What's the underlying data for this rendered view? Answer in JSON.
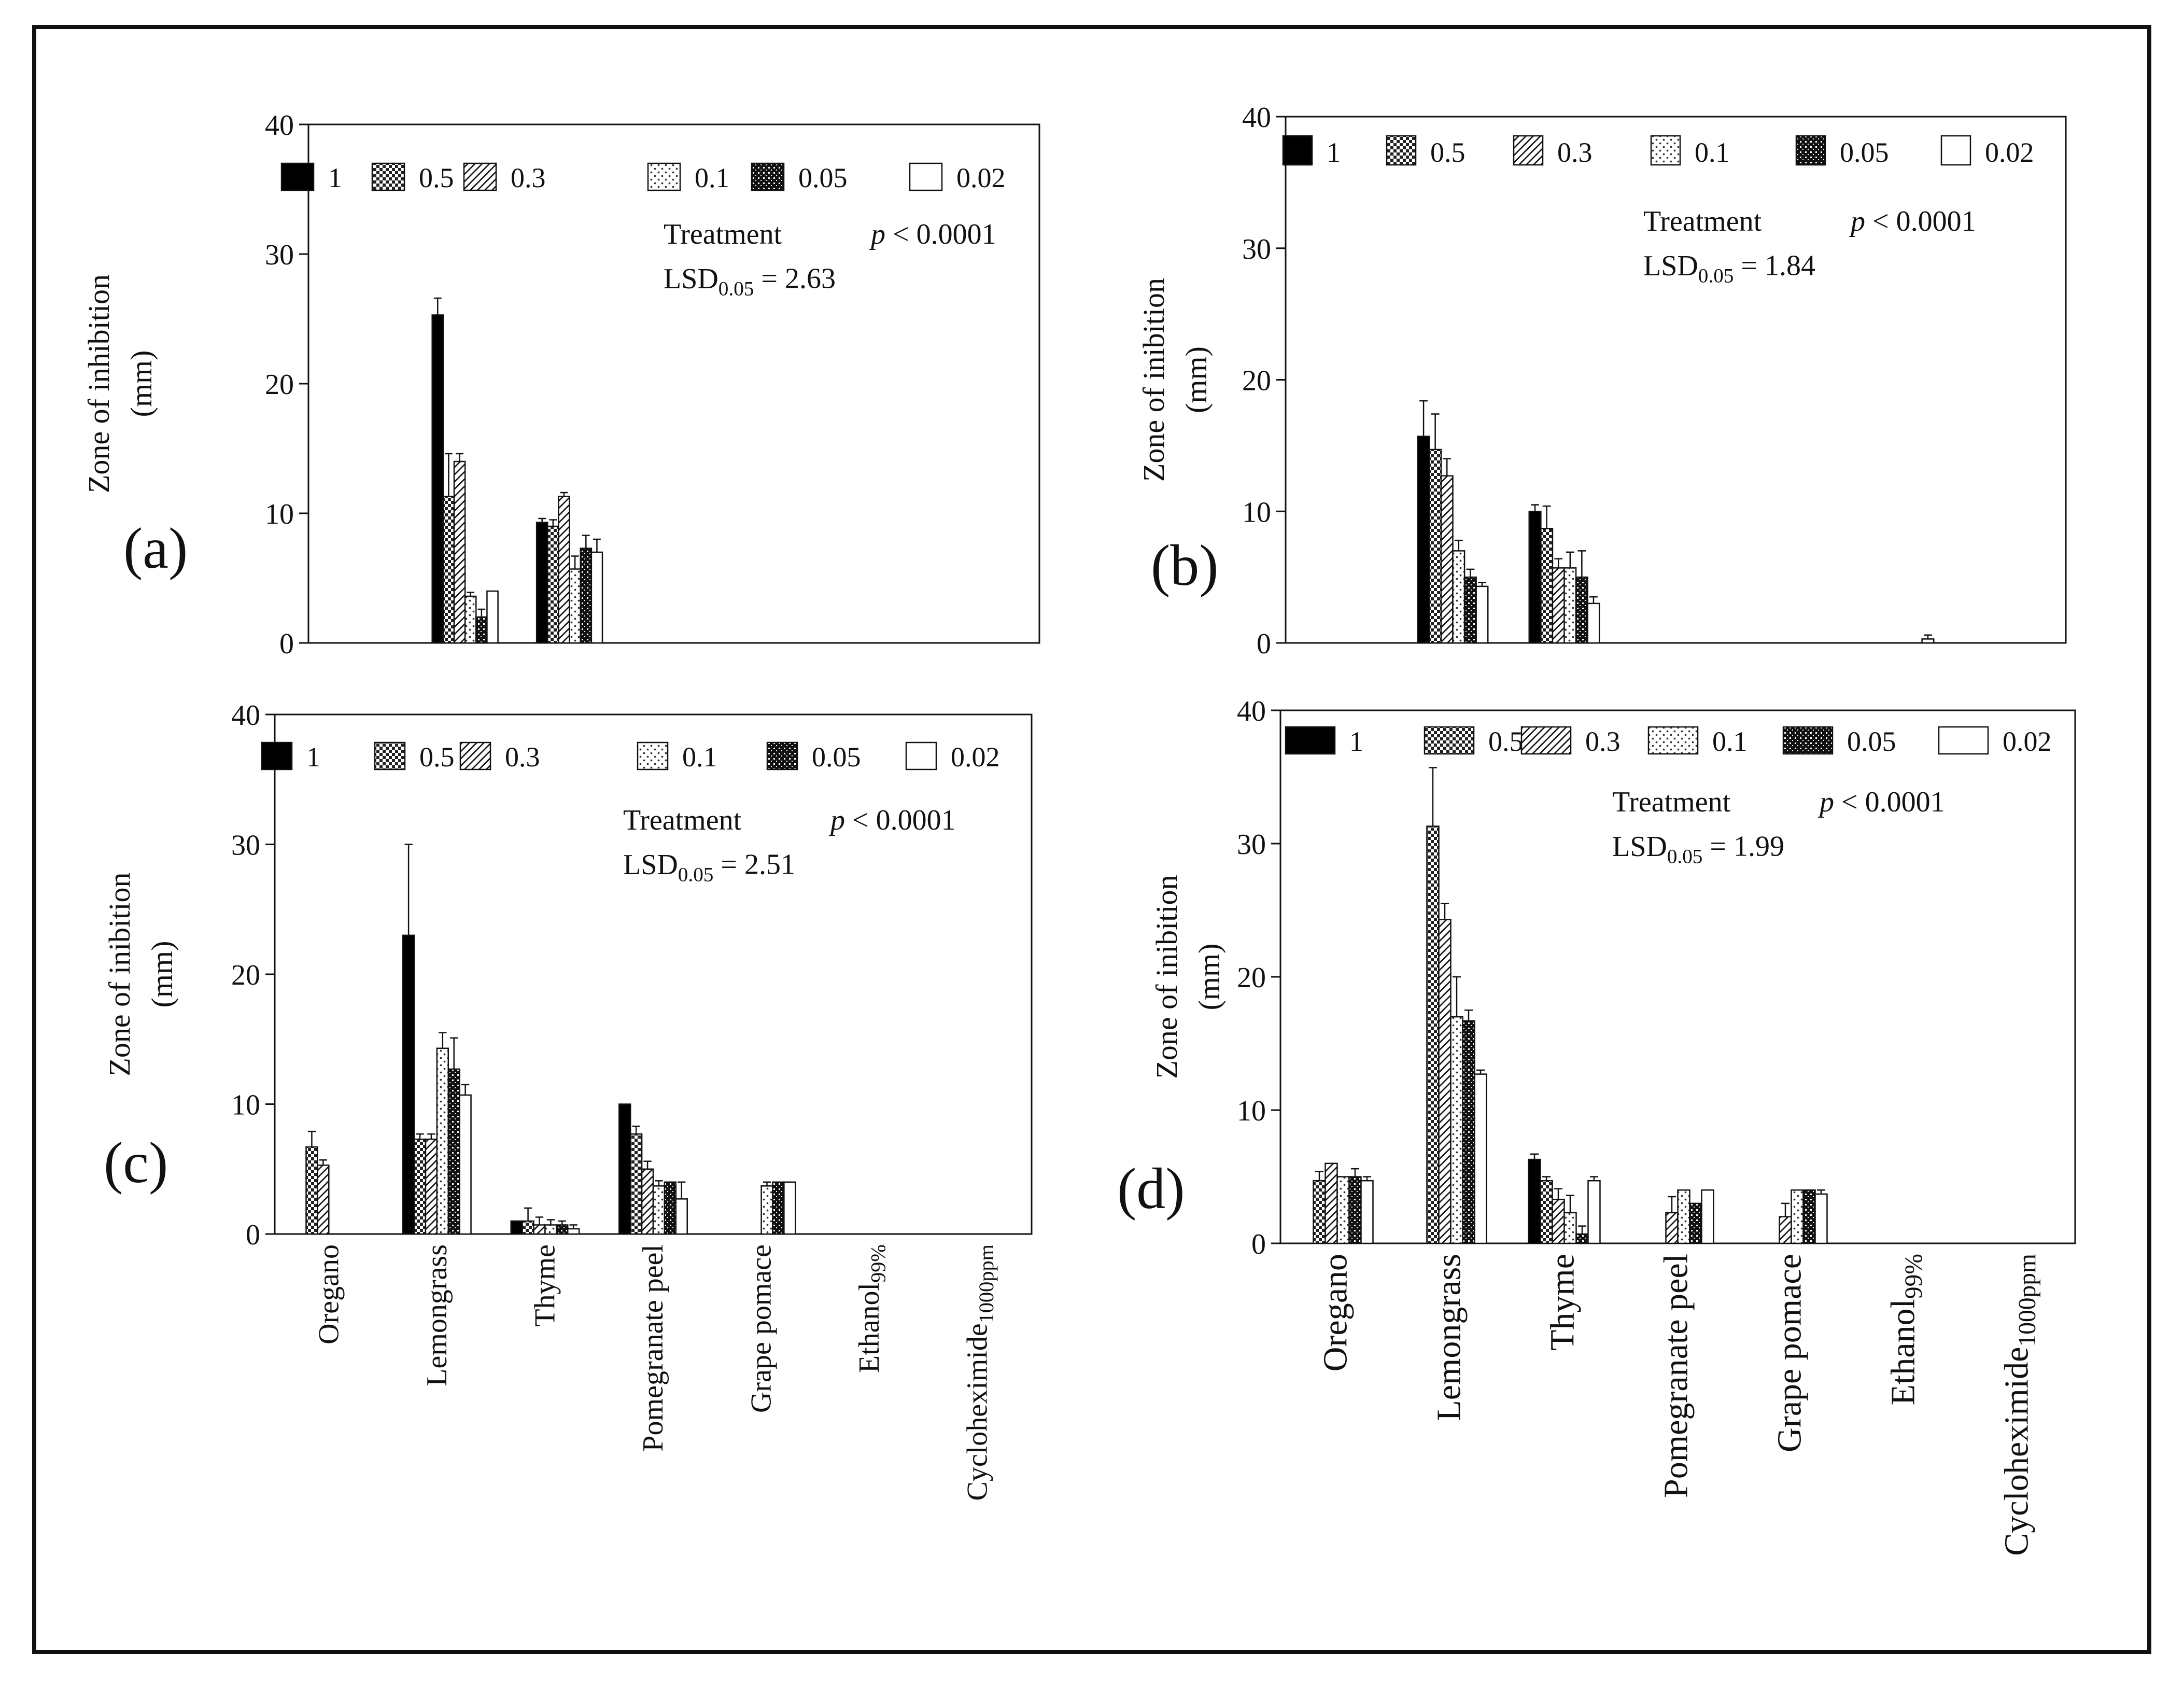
{
  "figure": {
    "panel_tags": [
      "(a)",
      "(b)",
      "(c)",
      "(d)"
    ]
  },
  "chart_data": [
    {
      "panel": "(a)",
      "type": "bar",
      "ylabel_lines": [
        "Zone of inhibition",
        "(mm)"
      ],
      "ylim": [
        0,
        40
      ],
      "yticks": [
        0,
        10,
        20,
        30,
        40
      ],
      "categories": [
        "Oregano",
        "Lemongrass",
        "Thyme",
        "Pomegranate peel",
        "Grape pomace",
        "Ethanol99%",
        "Cycloheximide1000ppm"
      ],
      "show_category_labels": false,
      "legend": [
        "1",
        "0.5",
        "0.3",
        "0.1",
        "0.05",
        "0.02"
      ],
      "annotation": {
        "treatment": "Treatment",
        "p": "p < 0.0001",
        "lsd_base": "LSD",
        "lsd_sub": "0.05",
        "lsd_val": "= 2.63"
      },
      "series": [
        {
          "name": "1",
          "values": [
            0,
            25.3,
            9.3,
            0,
            0,
            0,
            0
          ],
          "errors": [
            0,
            1.3,
            0.3,
            0,
            0,
            0,
            0
          ]
        },
        {
          "name": "0.5",
          "values": [
            0,
            11.3,
            9.0,
            0,
            0,
            0,
            0
          ],
          "errors": [
            0,
            3.3,
            0.5,
            0,
            0,
            0,
            0
          ]
        },
        {
          "name": "0.3",
          "values": [
            0,
            14.0,
            11.3,
            0,
            0,
            0,
            0
          ],
          "errors": [
            0,
            0.6,
            0.3,
            0,
            0,
            0,
            0
          ]
        },
        {
          "name": "0.1",
          "values": [
            0,
            3.6,
            5.7,
            0,
            0,
            0,
            0
          ],
          "errors": [
            0,
            0.3,
            1.0,
            0,
            0,
            0,
            0
          ]
        },
        {
          "name": "0.05",
          "values": [
            0,
            2.0,
            7.3,
            0,
            0,
            0,
            0
          ],
          "errors": [
            0,
            0.6,
            1.0,
            0,
            0,
            0,
            0
          ]
        },
        {
          "name": "0.02",
          "values": [
            0,
            4.0,
            7.0,
            0,
            0,
            0,
            0
          ],
          "errors": [
            0,
            0,
            1.0,
            0,
            0,
            0,
            0
          ]
        }
      ]
    },
    {
      "panel": "(b)",
      "type": "bar",
      "ylabel_lines": [
        "Zone of inibition",
        "(mm)"
      ],
      "ylim": [
        0,
        40
      ],
      "yticks": [
        0,
        10,
        20,
        30,
        40
      ],
      "categories": [
        "Oregano",
        "Lemongrass",
        "Thyme",
        "Pomegranate peel",
        "Grape pomace",
        "Ethanol99%",
        "Cycloheximide1000ppm"
      ],
      "show_category_labels": false,
      "legend": [
        "1",
        "0.5",
        "0.3",
        "0.1",
        "0.05",
        "0.02"
      ],
      "annotation": {
        "treatment": "Treatment",
        "p": "p < 0.0001",
        "lsd_base": "LSD",
        "lsd_sub": "0.05",
        "lsd_val": "= 1.84"
      },
      "series": [
        {
          "name": "1",
          "values": [
            0,
            15.7,
            10.0,
            0,
            0,
            0,
            0
          ],
          "errors": [
            0,
            2.7,
            0.5,
            0,
            0,
            0,
            0
          ]
        },
        {
          "name": "0.5",
          "values": [
            0,
            14.7,
            8.7,
            0,
            0,
            0,
            0
          ],
          "errors": [
            0,
            2.7,
            1.7,
            0,
            0,
            0,
            0
          ]
        },
        {
          "name": "0.3",
          "values": [
            0,
            12.7,
            5.7,
            0,
            0,
            0,
            0
          ],
          "errors": [
            0,
            1.3,
            0.7,
            0,
            0,
            0,
            0
          ]
        },
        {
          "name": "0.1",
          "values": [
            0,
            7.0,
            5.7,
            0,
            0,
            0,
            0
          ],
          "errors": [
            0,
            0.8,
            1.2,
            0,
            0,
            0,
            0
          ]
        },
        {
          "name": "0.05",
          "values": [
            0,
            5.0,
            5.0,
            0,
            0,
            0,
            0
          ],
          "errors": [
            0,
            0.6,
            2.0,
            0,
            0,
            0,
            0
          ]
        },
        {
          "name": "0.02",
          "values": [
            0,
            4.3,
            3.0,
            0,
            0,
            0.3,
            0
          ],
          "errors": [
            0,
            0.3,
            0.5,
            0,
            0,
            0.3,
            0
          ]
        }
      ]
    },
    {
      "panel": "(c)",
      "type": "bar",
      "ylabel_lines": [
        "Zone of inibition",
        "(mm)"
      ],
      "ylim": [
        0,
        40
      ],
      "yticks": [
        0,
        10,
        20,
        30,
        40
      ],
      "categories": [
        "Oregano",
        "Lemongrass",
        "Thyme",
        "Pomegranate peel",
        "Grape pomace",
        "Ethanol99%",
        "Cycloheximide1000ppm"
      ],
      "show_category_labels": true,
      "legend": [
        "1",
        "0.5",
        "0.3",
        "0.1",
        "0.05",
        "0.02"
      ],
      "annotation": {
        "treatment": "Treatment",
        "p": "p < 0.0001",
        "lsd_base": "LSD",
        "lsd_sub": "0.05",
        "lsd_val": "= 2.51"
      },
      "series": [
        {
          "name": "1",
          "values": [
            0,
            23.0,
            1.0,
            10.0,
            0,
            0,
            0
          ],
          "errors": [
            0,
            7.0,
            0,
            0,
            0,
            0,
            0
          ]
        },
        {
          "name": "0.5",
          "values": [
            6.7,
            7.3,
            1.0,
            7.7,
            0,
            0,
            0
          ],
          "errors": [
            1.2,
            0.4,
            1.0,
            0.6,
            0,
            0,
            0
          ]
        },
        {
          "name": "0.3",
          "values": [
            5.3,
            7.3,
            0.7,
            5.0,
            0,
            0,
            0
          ],
          "errors": [
            0.4,
            0.4,
            0.6,
            0.6,
            0,
            0,
            0
          ]
        },
        {
          "name": "0.1",
          "values": [
            0,
            14.3,
            0.7,
            3.7,
            3.7,
            0,
            0
          ],
          "errors": [
            0,
            1.2,
            0.4,
            0.4,
            0.3,
            0,
            0
          ]
        },
        {
          "name": "0.05",
          "values": [
            0,
            12.7,
            0.7,
            4.0,
            4.0,
            0,
            0
          ],
          "errors": [
            0,
            2.4,
            0.3,
            0,
            0,
            0,
            0
          ]
        },
        {
          "name": "0.02",
          "values": [
            0,
            10.7,
            0.4,
            2.7,
            4.0,
            0,
            0
          ],
          "errors": [
            0,
            0.8,
            0.3,
            1.3,
            0,
            0,
            0
          ]
        }
      ]
    },
    {
      "panel": "(d)",
      "type": "bar",
      "ylabel_lines": [
        "Zone of inibition",
        "(mm)"
      ],
      "ylim": [
        0,
        40
      ],
      "yticks": [
        0,
        10,
        20,
        30,
        40
      ],
      "categories": [
        "Oregano",
        "Lemongrass",
        "Thyme",
        "Pomegranate peel",
        "Grape pomace",
        "Ethanol99%",
        "Cycloheximide1000ppm"
      ],
      "show_category_labels": true,
      "legend": [
        "1",
        "0.5",
        "0.3",
        "0.1",
        "0.05",
        "0.02"
      ],
      "annotation": {
        "treatment": "Treatment",
        "p": "p < 0.0001",
        "lsd_base": "LSD",
        "lsd_sub": "0.05",
        "lsd_val": "= 1.99"
      },
      "series": [
        {
          "name": "1",
          "values": [
            0,
            0,
            6.3,
            0,
            0,
            0,
            0
          ],
          "errors": [
            0,
            0,
            0.4,
            0,
            0,
            0,
            0
          ]
        },
        {
          "name": "0.5",
          "values": [
            4.7,
            31.3,
            4.7,
            0,
            0,
            0,
            0
          ],
          "errors": [
            0.7,
            4.4,
            0.3,
            0,
            0,
            0,
            0
          ]
        },
        {
          "name": "0.3",
          "values": [
            6.0,
            24.3,
            3.3,
            2.3,
            2.0,
            0,
            0
          ],
          "errors": [
            0,
            1.2,
            0.8,
            1.2,
            1.0,
            0,
            0
          ]
        },
        {
          "name": "0.1",
          "values": [
            5.0,
            17.0,
            2.3,
            4.0,
            4.0,
            0,
            0
          ],
          "errors": [
            0,
            3.0,
            1.3,
            0,
            0,
            0,
            0
          ]
        },
        {
          "name": "0.05",
          "values": [
            5.0,
            16.7,
            0.7,
            3.0,
            4.0,
            0,
            0
          ],
          "errors": [
            0.6,
            0.8,
            0.6,
            0,
            0,
            0,
            0
          ]
        },
        {
          "name": "0.02",
          "values": [
            4.7,
            12.7,
            4.7,
            4.0,
            3.7,
            0,
            0
          ],
          "errors": [
            0.3,
            0.3,
            0.3,
            0,
            0.3,
            0,
            0
          ]
        }
      ]
    }
  ]
}
